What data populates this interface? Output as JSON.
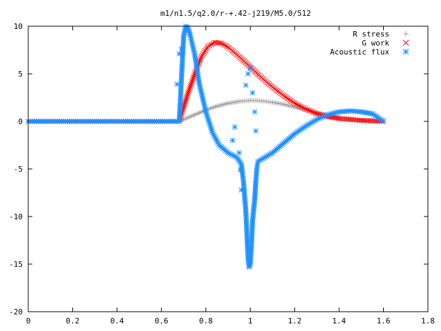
{
  "chart_data": {
    "type": "scatter",
    "title": "m1/n1.5/q2.0/r-+.42-j219/M5.0/512",
    "xlabel": "",
    "ylabel": "",
    "xlim": [
      0,
      1.8
    ],
    "ylim": [
      -20,
      10
    ],
    "xticks": [
      "0",
      "0.2",
      "0.4",
      "0.6",
      "0.8",
      "1",
      "1.2",
      "1.4",
      "1.6",
      "1.8"
    ],
    "yticks": [
      "10",
      "5",
      "0",
      "-5",
      "-10",
      "-15",
      "-20"
    ],
    "grid": false,
    "legend_position": "top-right",
    "series": [
      {
        "name": "R stress",
        "marker": "plus",
        "color": "#a0a0a0",
        "points": [
          [
            0.0,
            0
          ],
          [
            0.68,
            0
          ],
          [
            0.7,
            0.2
          ],
          [
            0.75,
            0.7
          ],
          [
            0.8,
            1.2
          ],
          [
            0.85,
            1.6
          ],
          [
            0.9,
            1.9
          ],
          [
            0.95,
            2.1
          ],
          [
            1.0,
            2.2
          ],
          [
            1.05,
            2.15
          ],
          [
            1.1,
            2.0
          ],
          [
            1.15,
            1.8
          ],
          [
            1.2,
            1.5
          ],
          [
            1.25,
            1.2
          ],
          [
            1.3,
            0.9
          ],
          [
            1.35,
            0.6
          ],
          [
            1.4,
            0.4
          ],
          [
            1.45,
            0.25
          ],
          [
            1.5,
            0.12
          ],
          [
            1.55,
            0.05
          ],
          [
            1.6,
            0
          ]
        ]
      },
      {
        "name": "G work",
        "marker": "x",
        "color": "#ff0000",
        "points": [
          [
            0.0,
            0
          ],
          [
            0.68,
            0
          ],
          [
            0.7,
            1.5
          ],
          [
            0.72,
            3.0
          ],
          [
            0.75,
            5.0
          ],
          [
            0.78,
            6.8
          ],
          [
            0.81,
            7.9
          ],
          [
            0.84,
            8.3
          ],
          [
            0.87,
            8.2
          ],
          [
            0.9,
            7.8
          ],
          [
            0.95,
            6.8
          ],
          [
            1.0,
            5.7
          ],
          [
            1.05,
            4.6
          ],
          [
            1.1,
            3.6
          ],
          [
            1.15,
            2.7
          ],
          [
            1.2,
            1.9
          ],
          [
            1.25,
            1.3
          ],
          [
            1.3,
            0.8
          ],
          [
            1.35,
            0.5
          ],
          [
            1.4,
            0.3
          ],
          [
            1.45,
            0.2
          ],
          [
            1.5,
            0.1
          ],
          [
            1.55,
            0.05
          ],
          [
            1.6,
            0
          ]
        ]
      },
      {
        "name": "Acoustic flux",
        "marker": "star",
        "color": "#1e90ff",
        "points": [
          [
            0.0,
            0
          ],
          [
            0.68,
            0
          ],
          [
            0.7,
            9.0
          ],
          [
            0.71,
            10.0
          ],
          [
            0.72,
            9.8
          ],
          [
            0.73,
            9.0
          ],
          [
            0.75,
            7.0
          ],
          [
            0.77,
            4.0
          ],
          [
            0.8,
            1.0
          ],
          [
            0.83,
            -1.2
          ],
          [
            0.86,
            -2.5
          ],
          [
            0.9,
            -3.3
          ],
          [
            0.94,
            -3.8
          ],
          [
            0.96,
            -4.5
          ],
          [
            0.97,
            -6.5
          ],
          [
            0.98,
            -9.5
          ],
          [
            0.985,
            -12.0
          ],
          [
            0.99,
            -14.3
          ],
          [
            0.995,
            -15.3
          ],
          [
            1.0,
            -15.0
          ],
          [
            1.005,
            -13.2
          ],
          [
            1.01,
            -10.5
          ],
          [
            1.02,
            -8.2
          ],
          [
            1.025,
            -6.3
          ],
          [
            1.03,
            -4.8
          ],
          [
            1.035,
            -4.2
          ],
          [
            1.05,
            -4.0
          ],
          [
            1.1,
            -3.3
          ],
          [
            1.15,
            -2.3
          ],
          [
            1.2,
            -1.3
          ],
          [
            1.25,
            -0.5
          ],
          [
            1.3,
            0.2
          ],
          [
            1.35,
            0.7
          ],
          [
            1.4,
            1.0
          ],
          [
            1.45,
            1.1
          ],
          [
            1.5,
            1.0
          ],
          [
            1.55,
            0.8
          ],
          [
            1.6,
            0
          ]
        ]
      },
      {
        "name": "",
        "marker": "star",
        "color": "#1e90ff",
        "points": [
          [
            0.67,
            3.9
          ],
          [
            0.68,
            7.1
          ],
          [
            0.69,
            7.6
          ],
          [
            0.92,
            -2.0
          ],
          [
            0.93,
            -0.6
          ],
          [
            0.95,
            -3.3
          ],
          [
            0.955,
            -5.1
          ],
          [
            0.96,
            -7.2
          ],
          [
            0.98,
            3.8
          ],
          [
            0.99,
            5.0
          ],
          [
            1.0,
            5.6
          ],
          [
            1.01,
            3.0
          ],
          [
            1.02,
            1.0
          ],
          [
            1.025,
            -1.0
          ]
        ]
      }
    ]
  }
}
